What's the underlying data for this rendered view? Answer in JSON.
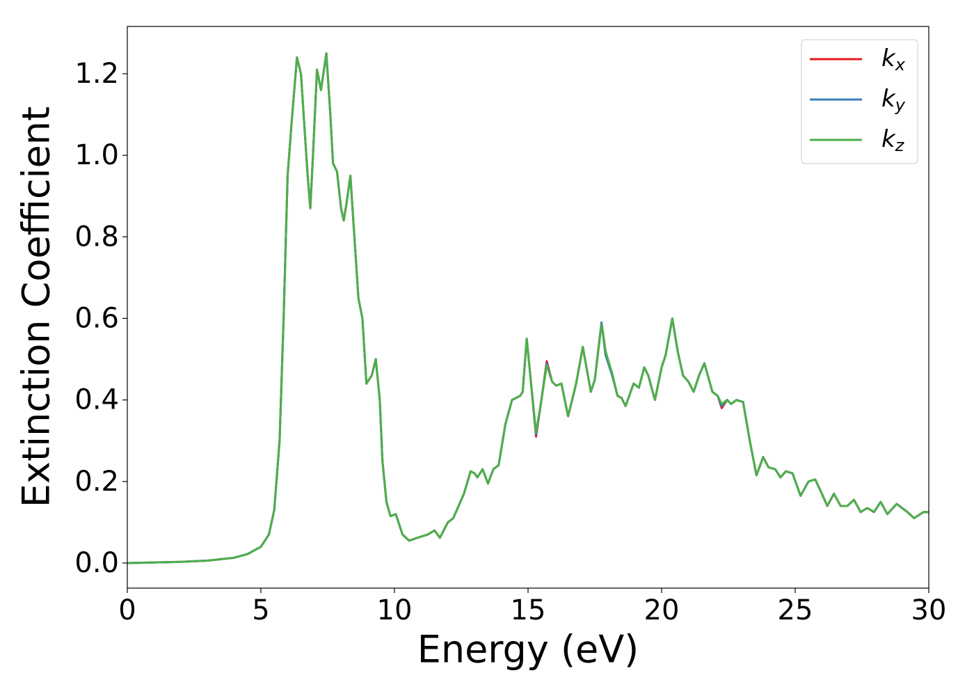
{
  "chart_data": {
    "type": "line",
    "xlabel": "Energy (eV)",
    "ylabel": "Extinction Coefficient",
    "xlim": [
      0,
      30
    ],
    "ylim": [
      -0.0615,
      1.316
    ],
    "xticks": [
      0,
      5,
      10,
      15,
      20,
      25,
      30
    ],
    "yticks": [
      {
        "value": 0,
        "label": "0.0"
      },
      0.2,
      0.4,
      0.6,
      0.8,
      {
        "value": 1,
        "label": "1.0"
      },
      1.2
    ],
    "grid": false,
    "legend": "upper right",
    "x": [
      0,
      2,
      3,
      4,
      4.5,
      5,
      5.3,
      5.5,
      5.7,
      5.85,
      6,
      6.15,
      6.35,
      6.5,
      6.6,
      6.75,
      6.85,
      6.95,
      7.1,
      7.25,
      7.45,
      7.6,
      7.7,
      7.85,
      8,
      8.1,
      8.2,
      8.35,
      8.5,
      8.65,
      8.8,
      8.95,
      9.15,
      9.3,
      9.45,
      9.55,
      9.7,
      9.85,
      10.05,
      10.3,
      10.55,
      11,
      11.25,
      11.5,
      11.7,
      12,
      12.2,
      12.6,
      12.85,
      13,
      13.1,
      13.3,
      13.5,
      13.7,
      13.9,
      14.15,
      14.4,
      14.7,
      14.8,
      14.95,
      15.1,
      15.3,
      15.5,
      15.7,
      15.9,
      16.05,
      16.25,
      16.5,
      16.8,
      17.05,
      17.35,
      17.5,
      17.75,
      17.9,
      18.15,
      18.35,
      18.5,
      18.65,
      18.95,
      19.15,
      19.35,
      19.5,
      19.75,
      20,
      20.15,
      20.4,
      20.6,
      20.8,
      21,
      21.2,
      21.4,
      21.6,
      21.9,
      22.1,
      22.25,
      22.45,
      22.6,
      22.8,
      23.05,
      23.3,
      23.55,
      23.8,
      24,
      24.25,
      24.45,
      24.65,
      24.9,
      25.2,
      25.5,
      25.75,
      26,
      26.2,
      26.45,
      26.7,
      26.95,
      27.2,
      27.45,
      27.7,
      27.95,
      28.2,
      28.45,
      28.8,
      29.2,
      29.45,
      29.8,
      30
    ],
    "series": [
      {
        "name": "kx",
        "color": "#e41a1c",
        "values": [
          0,
          0.003,
          0.006,
          0.013,
          0.022,
          0.04,
          0.07,
          0.13,
          0.3,
          0.6,
          0.95,
          1.08,
          1.24,
          1.2,
          1.1,
          0.95,
          0.87,
          1,
          1.21,
          1.16,
          1.25,
          1.1,
          0.98,
          0.96,
          0.87,
          0.84,
          0.88,
          0.95,
          0.8,
          0.65,
          0.6,
          0.44,
          0.46,
          0.5,
          0.4,
          0.25,
          0.15,
          0.115,
          0.12,
          0.07,
          0.055,
          0.065,
          0.07,
          0.08,
          0.062,
          0.1,
          0.11,
          0.17,
          0.225,
          0.22,
          0.21,
          0.23,
          0.195,
          0.23,
          0.24,
          0.34,
          0.4,
          0.41,
          0.42,
          0.55,
          0.45,
          0.31,
          0.4,
          0.495,
          0.445,
          0.435,
          0.44,
          0.36,
          0.44,
          0.53,
          0.42,
          0.45,
          0.59,
          0.52,
          0.46,
          0.41,
          0.405,
          0.385,
          0.44,
          0.43,
          0.48,
          0.46,
          0.4,
          0.48,
          0.51,
          0.6,
          0.52,
          0.46,
          0.445,
          0.42,
          0.46,
          0.49,
          0.42,
          0.41,
          0.38,
          0.4,
          0.39,
          0.4,
          0.395,
          0.3,
          0.215,
          0.26,
          0.235,
          0.23,
          0.21,
          0.225,
          0.22,
          0.165,
          0.2,
          0.205,
          0.17,
          0.14,
          0.17,
          0.14,
          0.14,
          0.155,
          0.125,
          0.135,
          0.125,
          0.15,
          0.12,
          0.145,
          0.125,
          0.11,
          0.125,
          0.125
        ]
      },
      {
        "name": "ky",
        "color": "#377eb8",
        "values": [
          0,
          0.003,
          0.006,
          0.013,
          0.022,
          0.04,
          0.07,
          0.13,
          0.3,
          0.6,
          0.95,
          1.08,
          1.24,
          1.2,
          1.1,
          0.95,
          0.87,
          1,
          1.21,
          1.16,
          1.25,
          1.1,
          0.98,
          0.96,
          0.87,
          0.84,
          0.88,
          0.95,
          0.8,
          0.65,
          0.6,
          0.44,
          0.46,
          0.5,
          0.4,
          0.25,
          0.15,
          0.115,
          0.12,
          0.07,
          0.055,
          0.065,
          0.07,
          0.08,
          0.062,
          0.1,
          0.11,
          0.17,
          0.225,
          0.22,
          0.21,
          0.23,
          0.195,
          0.23,
          0.24,
          0.34,
          0.4,
          0.41,
          0.42,
          0.55,
          0.45,
          0.315,
          0.4,
          0.49,
          0.445,
          0.435,
          0.44,
          0.36,
          0.44,
          0.53,
          0.42,
          0.45,
          0.59,
          0.51,
          0.46,
          0.41,
          0.405,
          0.385,
          0.44,
          0.43,
          0.48,
          0.46,
          0.4,
          0.48,
          0.51,
          0.6,
          0.52,
          0.46,
          0.445,
          0.42,
          0.46,
          0.49,
          0.42,
          0.41,
          0.385,
          0.4,
          0.39,
          0.4,
          0.395,
          0.3,
          0.215,
          0.26,
          0.235,
          0.23,
          0.21,
          0.225,
          0.22,
          0.165,
          0.2,
          0.205,
          0.17,
          0.14,
          0.17,
          0.14,
          0.14,
          0.155,
          0.125,
          0.135,
          0.125,
          0.15,
          0.12,
          0.145,
          0.125,
          0.11,
          0.125,
          0.125
        ]
      },
      {
        "name": "kz",
        "color": "#4daf4a",
        "values": [
          0,
          0.003,
          0.006,
          0.013,
          0.022,
          0.04,
          0.07,
          0.13,
          0.3,
          0.6,
          0.95,
          1.08,
          1.24,
          1.2,
          1.1,
          0.95,
          0.87,
          1,
          1.21,
          1.16,
          1.25,
          1.1,
          0.98,
          0.96,
          0.87,
          0.84,
          0.88,
          0.95,
          0.8,
          0.65,
          0.6,
          0.44,
          0.46,
          0.5,
          0.4,
          0.25,
          0.15,
          0.115,
          0.12,
          0.07,
          0.055,
          0.065,
          0.07,
          0.08,
          0.062,
          0.1,
          0.11,
          0.17,
          0.225,
          0.22,
          0.21,
          0.23,
          0.195,
          0.23,
          0.24,
          0.34,
          0.4,
          0.41,
          0.42,
          0.55,
          0.45,
          0.32,
          0.4,
          0.485,
          0.445,
          0.435,
          0.44,
          0.36,
          0.44,
          0.53,
          0.42,
          0.45,
          0.585,
          0.52,
          0.465,
          0.41,
          0.405,
          0.385,
          0.44,
          0.43,
          0.48,
          0.46,
          0.4,
          0.48,
          0.51,
          0.6,
          0.52,
          0.46,
          0.445,
          0.42,
          0.46,
          0.49,
          0.42,
          0.41,
          0.39,
          0.4,
          0.39,
          0.4,
          0.395,
          0.3,
          0.215,
          0.26,
          0.235,
          0.23,
          0.21,
          0.225,
          0.22,
          0.165,
          0.2,
          0.205,
          0.17,
          0.14,
          0.17,
          0.14,
          0.14,
          0.155,
          0.125,
          0.135,
          0.125,
          0.15,
          0.12,
          0.145,
          0.125,
          0.11,
          0.125,
          0.125
        ]
      }
    ]
  }
}
